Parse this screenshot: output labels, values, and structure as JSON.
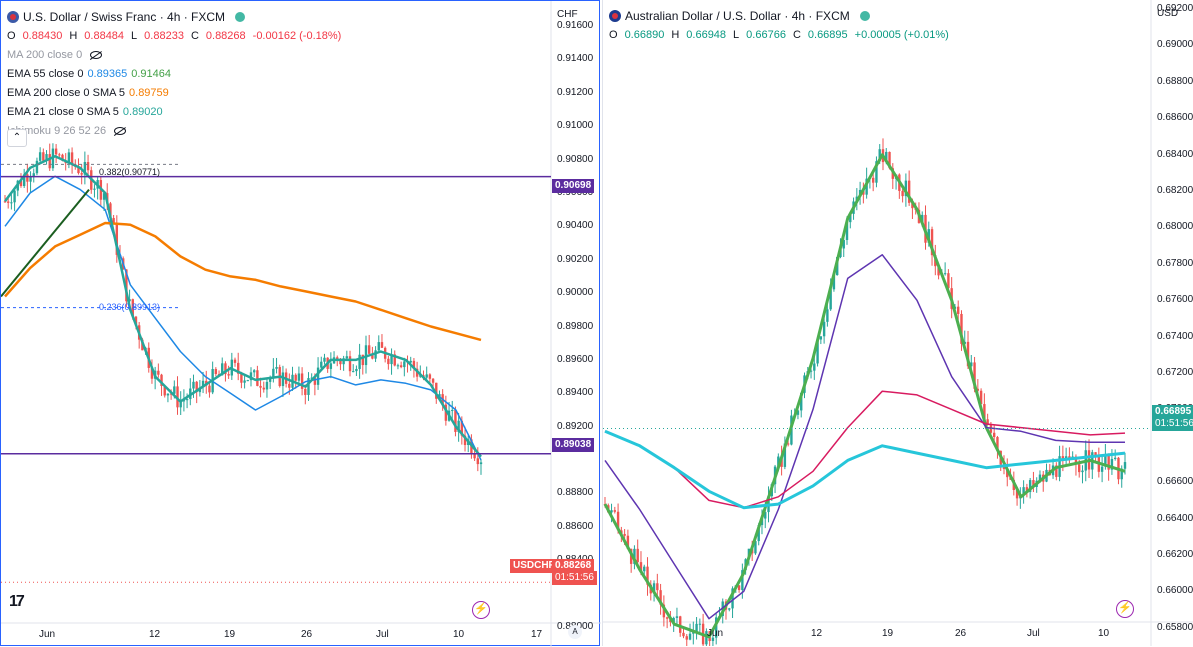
{
  "left": {
    "title": "U.S. Dollar / Swiss Franc · 4h · FXCM",
    "currency": "CHF",
    "ohlc": {
      "o_label": "O",
      "o": "0.88430",
      "h_label": "H",
      "h": "0.88484",
      "l_label": "L",
      "l": "0.88233",
      "c_label": "C",
      "c": "0.88268",
      "chg": "-0.00162 (-0.18%)"
    },
    "indicators": [
      {
        "label": "MA 200 close 0",
        "value": ""
      },
      {
        "label": "EMA 55 close 0",
        "value": "0.89365",
        "value2": "0.91464"
      },
      {
        "label": "EMA 200 close 0 SMA 5",
        "value": "0.89759"
      },
      {
        "label": "EMA 21 close 0 SMA 5",
        "value": "0.89020"
      },
      {
        "label": "Ichimoku 9 26 52 26",
        "value": ""
      }
    ],
    "price_ticks": [
      "0.91600",
      "0.91400",
      "0.91200",
      "0.91000",
      "0.90800",
      "0.90600",
      "0.90400",
      "0.90200",
      "0.90000",
      "0.89800",
      "0.89600",
      "0.89400",
      "0.89200",
      "0.88800",
      "0.88600",
      "0.88400",
      "0.88000"
    ],
    "time_ticks": [
      "Jun",
      "12",
      "19",
      "26",
      "Jul",
      "10",
      "17"
    ],
    "hline_top": "0.90698",
    "hline_bottom": "0.89038",
    "fib_upper": "0.382(0.90771)",
    "fib_lower": "0.236(0.89913)",
    "symbol_tag": "USDCHF",
    "last_price": "0.88268",
    "countdown": "01:51:56",
    "auto": "A",
    "colors": {
      "ema55": "#1e88e5",
      "ema200": "#f57c00",
      "ema21": "#26a69a",
      "hline": "#5b2c9f",
      "up": "#26a69a",
      "down": "#ef5350"
    }
  },
  "right": {
    "title": "Australian Dollar / U.S. Dollar · 4h · FXCM",
    "currency": "USD",
    "ohlc": {
      "o_label": "O",
      "o": "0.66890",
      "h_label": "H",
      "h": "0.66948",
      "l_label": "L",
      "l": "0.66766",
      "c_label": "C",
      "c": "0.66895",
      "chg": "+0.00005 (+0.01%)"
    },
    "price_ticks": [
      "0.69200",
      "0.69000",
      "0.68800",
      "0.68600",
      "0.68400",
      "0.68200",
      "0.68000",
      "0.67800",
      "0.67600",
      "0.67400",
      "0.67200",
      "0.67000",
      "0.66600",
      "0.66400",
      "0.66200",
      "0.66000",
      "0.65800"
    ],
    "time_ticks": [
      "Jun",
      "12",
      "19",
      "26",
      "Jul",
      "10"
    ],
    "last_price": "0.66895",
    "countdown": "01:51:56",
    "colors": {
      "green": "#4caf50",
      "purple": "#5e35b1",
      "red": "#d81b60",
      "cyan": "#26c6da",
      "up": "#26a69a",
      "down": "#ef5350"
    }
  },
  "chart_data": [
    {
      "type": "candlestick",
      "title": "U.S. Dollar / Swiss Franc · 4h · FXCM",
      "ylim": [
        0.8788,
        0.9175
      ],
      "series": [
        {
          "name": "EMA 55",
          "values": [
            0.904,
            0.906,
            0.907,
            0.9062,
            0.905,
            0.9005,
            0.8985,
            0.8965,
            0.895,
            0.894,
            0.893,
            0.8938,
            0.8947,
            0.895,
            0.8945,
            0.8948,
            0.8946,
            0.8942,
            0.893,
            0.89
          ]
        },
        {
          "name": "EMA 200",
          "values": [
            0.8998,
            0.9015,
            0.9028,
            0.9035,
            0.9042,
            0.9041,
            0.9034,
            0.9022,
            0.9014,
            0.901,
            0.9008,
            0.9004,
            0.9001,
            0.8998,
            0.8995,
            0.899,
            0.8985,
            0.898,
            0.8976,
            0.8972
          ]
        },
        {
          "name": "EMA 21",
          "values": [
            0.9055,
            0.9075,
            0.9082,
            0.9075,
            0.906,
            0.899,
            0.895,
            0.8935,
            0.8945,
            0.8955,
            0.8948,
            0.895,
            0.8944,
            0.896,
            0.896,
            0.8965,
            0.896,
            0.8945,
            0.892,
            0.8902
          ]
        }
      ]
    },
    {
      "type": "candlestick",
      "title": "Australian Dollar / U.S. Dollar · 4h · FXCM",
      "ylim": [
        0.657,
        0.6925
      ],
      "series": [
        {
          "name": "green",
          "values": [
            0.6648,
            0.6612,
            0.6582,
            0.6575,
            0.661,
            0.6668,
            0.6728,
            0.6805,
            0.684,
            0.681,
            0.676,
            0.669,
            0.6652,
            0.6668,
            0.6672,
            0.6666
          ]
        },
        {
          "name": "purple",
          "values": [
            0.6672,
            0.6645,
            0.6615,
            0.6585,
            0.66,
            0.6645,
            0.67,
            0.6772,
            0.6785,
            0.676,
            0.6718,
            0.669,
            0.6688,
            0.6683,
            0.6682,
            0.6682
          ]
        },
        {
          "name": "red",
          "values": [
            0.6688,
            0.668,
            0.6668,
            0.665,
            0.6646,
            0.6652,
            0.6666,
            0.669,
            0.671,
            0.6708,
            0.67,
            0.6692,
            0.669,
            0.6688,
            0.6686,
            0.6687
          ]
        },
        {
          "name": "cyan",
          "values": [
            0.6688,
            0.668,
            0.6668,
            0.6655,
            0.6646,
            0.6648,
            0.6658,
            0.6672,
            0.668,
            0.6676,
            0.6672,
            0.6668,
            0.667,
            0.6672,
            0.6674,
            0.6676
          ]
        }
      ]
    }
  ]
}
